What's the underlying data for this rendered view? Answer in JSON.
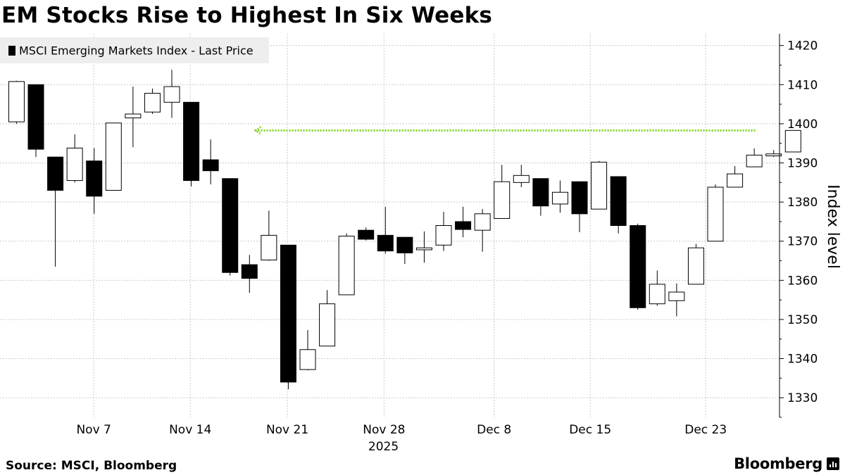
{
  "header": {
    "title": "EM Stocks Rise to Highest In Six Weeks"
  },
  "footer": {
    "source": "Source: MSCI, Bloomberg",
    "brand": "Bloomberg"
  },
  "icons": {
    "brand_mark": "bloomberg-bar-icon"
  },
  "colors": {
    "up_fill": "#ffffff",
    "down_fill": "#000000",
    "guide_line": "#7fd321",
    "grid": "#c8c8c8",
    "legend_bg": "#eeeeee"
  },
  "chart_data": {
    "type": "candlestick",
    "title": "EM Stocks Rise to Highest In Six Weeks",
    "legend": [
      "MSCI Emerging Markets Index - Last Price"
    ],
    "legend_position": "top-left",
    "ylabel": "Index level",
    "ylim": [
      1325,
      1423
    ],
    "yticks": [
      1330,
      1340,
      1350,
      1360,
      1370,
      1380,
      1390,
      1400,
      1410,
      1420
    ],
    "xlim": [
      -0.85,
      39.3
    ],
    "x_ticks": [
      {
        "label": "Nov 7",
        "index": 3.98
      },
      {
        "label": "Nov 14",
        "index": 8.95
      },
      {
        "label": "Nov 21",
        "index": 13.95
      },
      {
        "label": "Nov 28",
        "index": 18.93
      },
      {
        "label": "Dec 8",
        "index": 24.6
      },
      {
        "label": "Dec 15",
        "index": 29.55
      },
      {
        "label": "Dec 23",
        "index": 35.5
      }
    ],
    "year_label": "2025",
    "year_label_index": 18.9,
    "reference_line": {
      "value": 1398.3,
      "from_index": 12.3,
      "to_index": 38.05,
      "style": "dotted"
    },
    "candles": [
      {
        "date": "Nov 3",
        "open": 1400.5,
        "high": 1411,
        "low": 1400,
        "close": 1410.8
      },
      {
        "date": "Nov 4",
        "open": 1410,
        "high": 1410,
        "low": 1391.5,
        "close": 1393.5
      },
      {
        "date": "Nov 5",
        "open": 1391.5,
        "high": 1391.5,
        "low": 1363.5,
        "close": 1383
      },
      {
        "date": "Nov 6",
        "open": 1385.5,
        "high": 1397.3,
        "low": 1385,
        "close": 1393.8
      },
      {
        "date": "Nov 7",
        "open": 1390.5,
        "high": 1393.8,
        "low": 1377,
        "close": 1381.5
      },
      {
        "date": "Nov 10",
        "open": 1383,
        "high": 1400.2,
        "low": 1383,
        "close": 1400.2
      },
      {
        "date": "Nov 11",
        "open": 1401.5,
        "high": 1409.5,
        "low": 1394,
        "close": 1402.5
      },
      {
        "date": "Nov 12",
        "open": 1403,
        "high": 1409,
        "low": 1402.5,
        "close": 1407.8
      },
      {
        "date": "Nov 13",
        "open": 1405.5,
        "high": 1413.8,
        "low": 1401.5,
        "close": 1409.5
      },
      {
        "date": "Nov 14",
        "open": 1405.5,
        "high": 1405.5,
        "low": 1384,
        "close": 1385.5
      },
      {
        "date": "Nov 17",
        "open": 1390.8,
        "high": 1396,
        "low": 1384.5,
        "close": 1388
      },
      {
        "date": "Nov 18",
        "open": 1386,
        "high": 1386,
        "low": 1361.2,
        "close": 1362
      },
      {
        "date": "Nov 19",
        "open": 1364,
        "high": 1366.5,
        "low": 1356.8,
        "close": 1360.5
      },
      {
        "date": "Nov 20",
        "open": 1365.2,
        "high": 1377.8,
        "low": 1365,
        "close": 1371.5
      },
      {
        "date": "Nov 21",
        "open": 1369,
        "high": 1369,
        "low": 1332.2,
        "close": 1334
      },
      {
        "date": "Nov 24",
        "open": 1337.2,
        "high": 1347.3,
        "low": 1337,
        "close": 1342.3
      },
      {
        "date": "Nov 25",
        "open": 1343.2,
        "high": 1357.5,
        "low": 1343.2,
        "close": 1354
      },
      {
        "date": "Nov 26",
        "open": 1356.3,
        "high": 1372,
        "low": 1356.3,
        "close": 1371.3
      },
      {
        "date": "Nov 27",
        "open": 1372.8,
        "high": 1373.5,
        "low": 1370.2,
        "close": 1370.5
      },
      {
        "date": "Nov 28",
        "open": 1371.5,
        "high": 1378.8,
        "low": 1366.8,
        "close": 1367.5
      },
      {
        "date": "Dec 1",
        "open": 1371,
        "high": 1371,
        "low": 1364.2,
        "close": 1367
      },
      {
        "date": "Dec 2",
        "open": 1367.8,
        "high": 1372.5,
        "low": 1364.5,
        "close": 1368.3
      },
      {
        "date": "Dec 3",
        "open": 1369,
        "high": 1377.5,
        "low": 1367.5,
        "close": 1374
      },
      {
        "date": "Dec 4",
        "open": 1375,
        "high": 1378.8,
        "low": 1371,
        "close": 1373
      },
      {
        "date": "Dec 5",
        "open": 1372.8,
        "high": 1378.2,
        "low": 1367.3,
        "close": 1377
      },
      {
        "date": "Dec 8",
        "open": 1375.8,
        "high": 1389.5,
        "low": 1375.8,
        "close": 1385.2
      },
      {
        "date": "Dec 9",
        "open": 1385,
        "high": 1389.5,
        "low": 1383.8,
        "close": 1386.8
      },
      {
        "date": "Dec 10",
        "open": 1386,
        "high": 1386,
        "low": 1376.5,
        "close": 1379
      },
      {
        "date": "Dec 11",
        "open": 1379.5,
        "high": 1385.5,
        "low": 1377.3,
        "close": 1382.5
      },
      {
        "date": "Dec 12",
        "open": 1385.2,
        "high": 1385.2,
        "low": 1372.3,
        "close": 1377
      },
      {
        "date": "Dec 15",
        "open": 1378.2,
        "high": 1390.5,
        "low": 1378.2,
        "close": 1390.2
      },
      {
        "date": "Dec 16",
        "open": 1386.5,
        "high": 1386.5,
        "low": 1372,
        "close": 1374
      },
      {
        "date": "Dec 17",
        "open": 1374,
        "high": 1374.5,
        "low": 1352.5,
        "close": 1353
      },
      {
        "date": "Dec 18",
        "open": 1354,
        "high": 1362.5,
        "low": 1353.5,
        "close": 1359
      },
      {
        "date": "Dec 19",
        "open": 1354.8,
        "high": 1359.2,
        "low": 1350.8,
        "close": 1357
      },
      {
        "date": "Dec 22",
        "open": 1359,
        "high": 1369.3,
        "low": 1359,
        "close": 1368.3
      },
      {
        "date": "Dec 23",
        "open": 1370,
        "high": 1384.5,
        "low": 1370,
        "close": 1383.8
      },
      {
        "date": "Dec 24",
        "open": 1383.8,
        "high": 1389.2,
        "low": 1383.8,
        "close": 1387.2
      },
      {
        "date": "Dec 26",
        "open": 1389,
        "high": 1393.7,
        "low": 1389,
        "close": 1392
      },
      {
        "date": "Dec 29",
        "open": 1391.8,
        "high": 1393.3,
        "low": 1391.5,
        "close": 1392.3
      },
      {
        "date": "Dec 30",
        "open": 1392.8,
        "high": 1398.3,
        "low": 1392.8,
        "close": 1398.3
      }
    ]
  }
}
